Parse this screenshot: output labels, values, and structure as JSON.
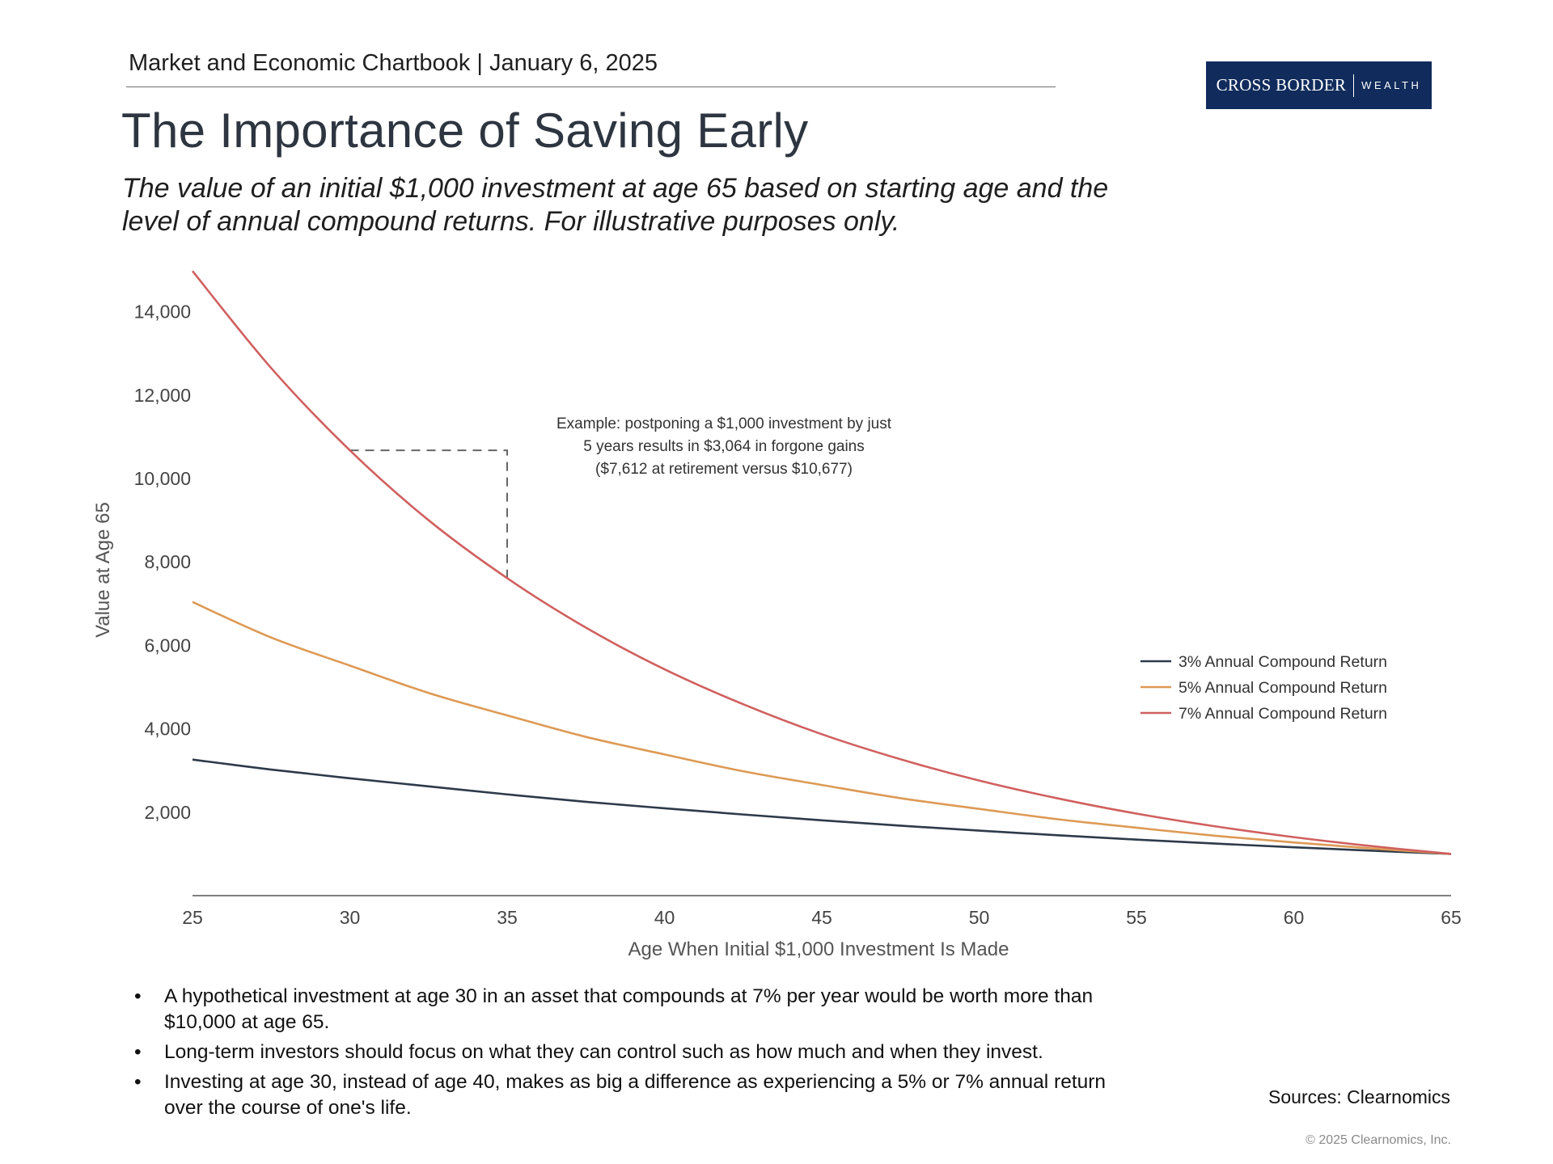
{
  "header": {
    "chartbook": "Market and Economic Chartbook",
    "separator": "|",
    "date": "January 6, 2025"
  },
  "logo": {
    "brand": "CROSS BORDER",
    "sub": "WEALTH"
  },
  "title": "The Importance of Saving Early",
  "subtitle": {
    "line1": "The value of an initial $1,000 investment at age 65 based on starting age and the",
    "line2": "level of annual compound returns. For illustrative purposes only."
  },
  "chart_data": {
    "type": "line",
    "xlabel": "Age When Initial $1,000 Investment Is Made",
    "ylabel": "Value at Age 65",
    "xlim": [
      25,
      65
    ],
    "ylim": [
      0,
      15000
    ],
    "x_ticks": [
      25,
      30,
      35,
      40,
      45,
      50,
      55,
      60,
      65
    ],
    "y_ticks": [
      2000,
      4000,
      6000,
      8000,
      10000,
      12000,
      14000
    ],
    "y_tick_labels": [
      "2,000",
      "4,000",
      "6,000",
      "8,000",
      "10,000",
      "12,000",
      "14,000"
    ],
    "x": [
      25,
      27.5,
      30,
      32.5,
      35,
      37.5,
      40,
      42.5,
      45,
      47.5,
      50,
      52.5,
      55,
      57.5,
      60,
      62.5,
      65
    ],
    "series": [
      {
        "name": "3% Annual Compound Return",
        "color": "#2d3a4a",
        "values": [
          3262,
          3022,
          2814,
          2620,
          2427,
          2250,
          2094,
          1945,
          1806,
          1677,
          1558,
          1447,
          1344,
          1248,
          1159,
          1077,
          1000
        ]
      },
      {
        "name": "5% Annual Compound Return",
        "color": "#dd9a55",
        "values": [
          7040,
          6188,
          5516,
          4860,
          4322,
          3807,
          3386,
          2982,
          2653,
          2337,
          2079,
          1831,
          1629,
          1435,
          1276,
          1130,
          1000
        ]
      },
      {
        "name": "7% Annual Compound Return",
        "color": "#d0605f",
        "values": [
          14974,
          12649,
          10677,
          9003,
          7612,
          6427,
          5427,
          4589,
          3870,
          3270,
          2759,
          2332,
          1967,
          1662,
          1403,
          1185,
          1000
        ]
      }
    ],
    "annotation": {
      "line1": "Example: postponing a $1,000 investment by just",
      "line2": "5 years results in $3,064 in forgone gains",
      "line3": "($7,612 at retirement versus $10,677)",
      "start_age": 30,
      "start_value": 10677,
      "delayed_age": 35,
      "delayed_value": 7612
    },
    "legend_position": "right",
    "grid": false
  },
  "bullets": [
    "A hypothetical investment at age 30 in an asset that compounds at 7% per year would be worth more than $10,000 at age 65.",
    "Long-term investors should focus on what they can control such as how much and when they invest.",
    "Investing at age 30, instead of age 40, makes as big a difference as experiencing a 5% or 7% annual return over the course of one's life."
  ],
  "sources": "Sources: Clearnomics",
  "copyright": "© 2025 Clearnomics, Inc."
}
